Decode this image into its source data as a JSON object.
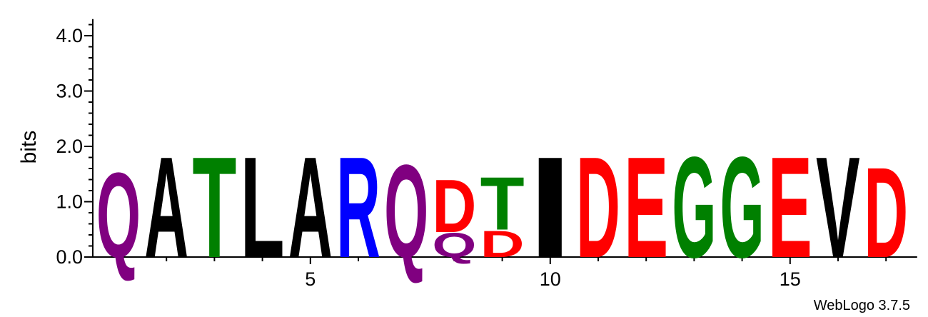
{
  "chart_data": {
    "type": "sequence-logo",
    "ylabel": "bits",
    "ylim": [
      0,
      4.3
    ],
    "yticks": [
      "0.0",
      "1.0",
      "2.0",
      "3.0",
      "4.0"
    ],
    "xticks": [
      "5",
      "10",
      "15"
    ],
    "credit": "WebLogo 3.7.5",
    "colors": {
      "A": "#000000",
      "L": "#000000",
      "I": "#000000",
      "V": "#000000",
      "T": "#008000",
      "G": "#008000",
      "R": "#0000ff",
      "Q": "#800080",
      "D": "#ff0000",
      "E": "#ff0000"
    },
    "positions": [
      {
        "pos": 1,
        "stack": [
          {
            "letter": "Q",
            "bits": 1.6
          }
        ]
      },
      {
        "pos": 2,
        "stack": [
          {
            "letter": "A",
            "bits": 1.9
          }
        ]
      },
      {
        "pos": 3,
        "stack": [
          {
            "letter": "T",
            "bits": 1.9
          }
        ]
      },
      {
        "pos": 4,
        "stack": [
          {
            "letter": "L",
            "bits": 1.9
          }
        ]
      },
      {
        "pos": 5,
        "stack": [
          {
            "letter": "A",
            "bits": 1.9
          }
        ]
      },
      {
        "pos": 6,
        "stack": [
          {
            "letter": "R",
            "bits": 1.9
          }
        ]
      },
      {
        "pos": 7,
        "stack": [
          {
            "letter": "Q",
            "bits": 1.75
          }
        ]
      },
      {
        "pos": 8,
        "stack": [
          {
            "letter": "Q",
            "bits": 0.45
          },
          {
            "letter": "D",
            "bits": 1.0
          }
        ]
      },
      {
        "pos": 9,
        "stack": [
          {
            "letter": "D",
            "bits": 0.5
          },
          {
            "letter": "T",
            "bits": 1.0
          }
        ]
      },
      {
        "pos": 10,
        "stack": [
          {
            "letter": "I",
            "bits": 1.9
          }
        ]
      },
      {
        "pos": 11,
        "stack": [
          {
            "letter": "D",
            "bits": 1.9
          }
        ]
      },
      {
        "pos": 12,
        "stack": [
          {
            "letter": "E",
            "bits": 1.9
          }
        ]
      },
      {
        "pos": 13,
        "stack": [
          {
            "letter": "G",
            "bits": 1.9
          }
        ]
      },
      {
        "pos": 14,
        "stack": [
          {
            "letter": "G",
            "bits": 1.9
          }
        ]
      },
      {
        "pos": 15,
        "stack": [
          {
            "letter": "E",
            "bits": 1.9
          }
        ]
      },
      {
        "pos": 16,
        "stack": [
          {
            "letter": "V",
            "bits": 1.9
          }
        ]
      },
      {
        "pos": 17,
        "stack": [
          {
            "letter": "D",
            "bits": 1.7
          }
        ]
      }
    ]
  }
}
